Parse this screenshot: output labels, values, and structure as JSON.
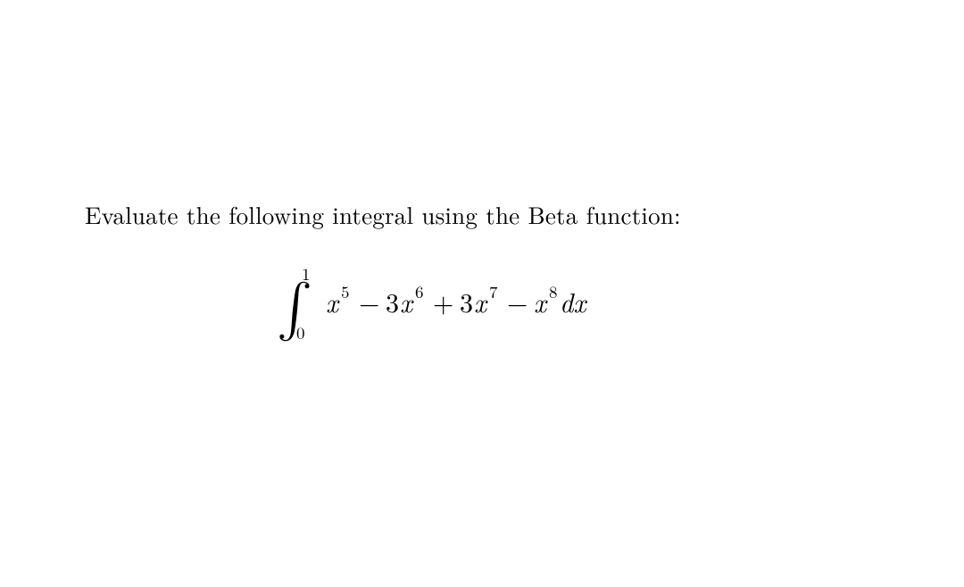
{
  "text": {
    "prompt": "Evaluate the following integral using the Beta function:"
  },
  "equation": {
    "colors": {
      "text": "#000000",
      "background": "#ffffff"
    },
    "fontsize_normal": 30,
    "fontsize_script": 19,
    "integral": {
      "lower": "0",
      "upper": "1"
    },
    "terms": [
      {
        "sign": "",
        "coef": "",
        "var": "x",
        "exp": "5"
      },
      {
        "sign": "−",
        "coef": "3",
        "var": "x",
        "exp": "6"
      },
      {
        "sign": "+",
        "coef": "3",
        "var": "x",
        "exp": "7"
      },
      {
        "sign": "−",
        "coef": "",
        "var": "x",
        "exp": "8"
      }
    ],
    "differential": "dx"
  }
}
